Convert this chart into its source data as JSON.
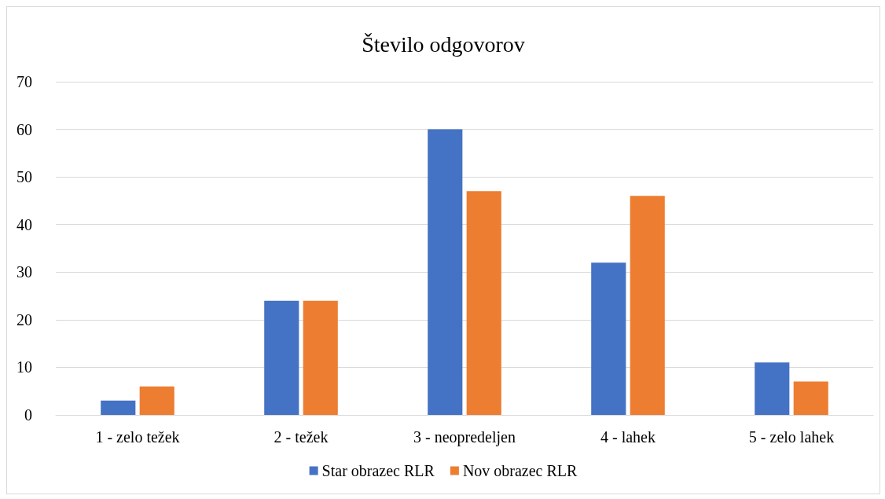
{
  "chart_data": {
    "type": "bar",
    "title": "Število odgovorov",
    "categories": [
      "1 - zelo težek",
      "2 - težek",
      "3 - neopredeljen",
      "4 - lahek",
      "5 - zelo lahek"
    ],
    "series": [
      {
        "name": "Star obrazec RLR",
        "color": "#4472c4",
        "values": [
          3,
          24,
          60,
          32,
          11
        ]
      },
      {
        "name": "Nov obrazec RLR",
        "color": "#ed7d31",
        "values": [
          6,
          24,
          47,
          46,
          7
        ]
      }
    ],
    "ylim": [
      0,
      70
    ],
    "yticks": [
      0,
      10,
      20,
      30,
      40,
      50,
      60,
      70
    ],
    "grid": "y",
    "legend": "bottom"
  }
}
